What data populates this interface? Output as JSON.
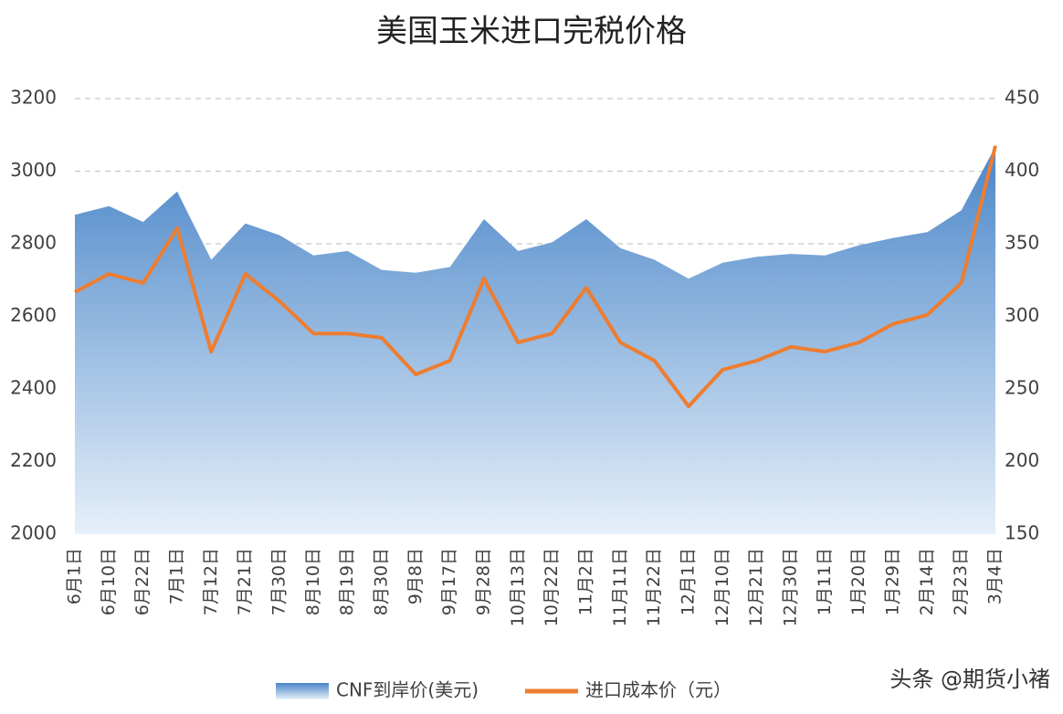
{
  "chart_data": {
    "type": "area_line",
    "title": "美国玉米进口完税价格",
    "categories": [
      "6月1日",
      "6月10日",
      "6月22日",
      "7月1日",
      "7月12日",
      "7月21日",
      "7月30日",
      "8月10日",
      "8月19日",
      "8月30日",
      "9月8日",
      "9月17日",
      "9月28日",
      "10月13日",
      "10月22日",
      "11月2日",
      "11月11日",
      "11月22日",
      "12月1日",
      "12月10日",
      "12月21日",
      "12月30日",
      "1月11日",
      "1月20日",
      "1月29日",
      "2月14日",
      "2月23日",
      "3月4日"
    ],
    "series": [
      {
        "name": "CNF到岸价(美元)",
        "type": "area",
        "axis": "y2",
        "color": "#4a86c8",
        "values": [
          370,
          376,
          365,
          386,
          339,
          364,
          356,
          342,
          345,
          332,
          330,
          334,
          367,
          345,
          351,
          367,
          347,
          339,
          326,
          337,
          341,
          343,
          342,
          349,
          354,
          358,
          373,
          417
        ]
      },
      {
        "name": "进口成本价（元）",
        "type": "line",
        "color": "#ed7d31",
        "values": [
          2667,
          2717,
          2692,
          2843,
          2503,
          2717,
          2642,
          2553,
          2553,
          2541,
          2440,
          2478,
          2704,
          2528,
          2553,
          2679,
          2528,
          2478,
          2352,
          2453,
          2478,
          2516,
          2503,
          2528,
          2579,
          2604,
          2692,
          3070
        ]
      }
    ],
    "ylim": [
      2000,
      3200
    ],
    "yticks": [
      2000,
      2200,
      2400,
      2600,
      2800,
      3000,
      3200
    ],
    "y2lim": [
      150,
      450
    ],
    "y2ticks": [
      150,
      200,
      250,
      300,
      350,
      400,
      450
    ],
    "grid": true,
    "legend": "bottom",
    "watermark": "头条 @期货小褚"
  }
}
